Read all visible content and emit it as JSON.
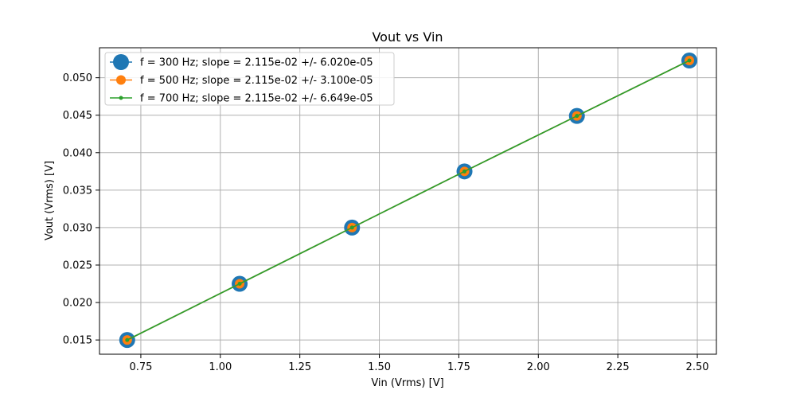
{
  "chart_data": {
    "type": "line",
    "title": "Vout vs Vin",
    "xlabel": "Vin (Vrms) [V]",
    "ylabel": "Vout (Vrms) [V]",
    "xlim": [
      0.62,
      2.56
    ],
    "ylim": [
      0.0131,
      0.054
    ],
    "xticks": [
      0.75,
      1.0,
      1.25,
      1.5,
      1.75,
      2.0,
      2.25,
      2.5
    ],
    "xtick_labels": [
      "0.75",
      "1.00",
      "1.25",
      "1.50",
      "1.75",
      "2.00",
      "2.25",
      "2.50"
    ],
    "yticks": [
      0.015,
      0.02,
      0.025,
      0.03,
      0.035,
      0.04,
      0.045,
      0.05
    ],
    "ytick_labels": [
      "0.015",
      "0.020",
      "0.025",
      "0.030",
      "0.035",
      "0.040",
      "0.045",
      "0.050"
    ],
    "grid": true,
    "legend_position": "top-left",
    "x": [
      0.7071,
      1.0607,
      1.4142,
      1.7678,
      2.1213,
      2.4749
    ],
    "series": [
      {
        "name": "f = 300 Hz; slope = 2.115e-02 +/- 6.020e-05",
        "values": [
          0.015,
          0.0225,
          0.03,
          0.0375,
          0.0449,
          0.0523
        ],
        "color": "#1f77b4",
        "marker": "large-circle"
      },
      {
        "name": "f = 500 Hz; slope = 2.115e-02 +/- 3.100e-05",
        "values": [
          0.015,
          0.0225,
          0.03,
          0.0375,
          0.0449,
          0.0523
        ],
        "color": "#ff7f0e",
        "marker": "medium-circle"
      },
      {
        "name": "f = 700 Hz; slope = 2.115e-02 +/- 6.649e-05",
        "values": [
          0.015,
          0.0225,
          0.03,
          0.0375,
          0.0449,
          0.0523
        ],
        "color": "#2ca02c",
        "marker": "small-dot"
      }
    ]
  }
}
